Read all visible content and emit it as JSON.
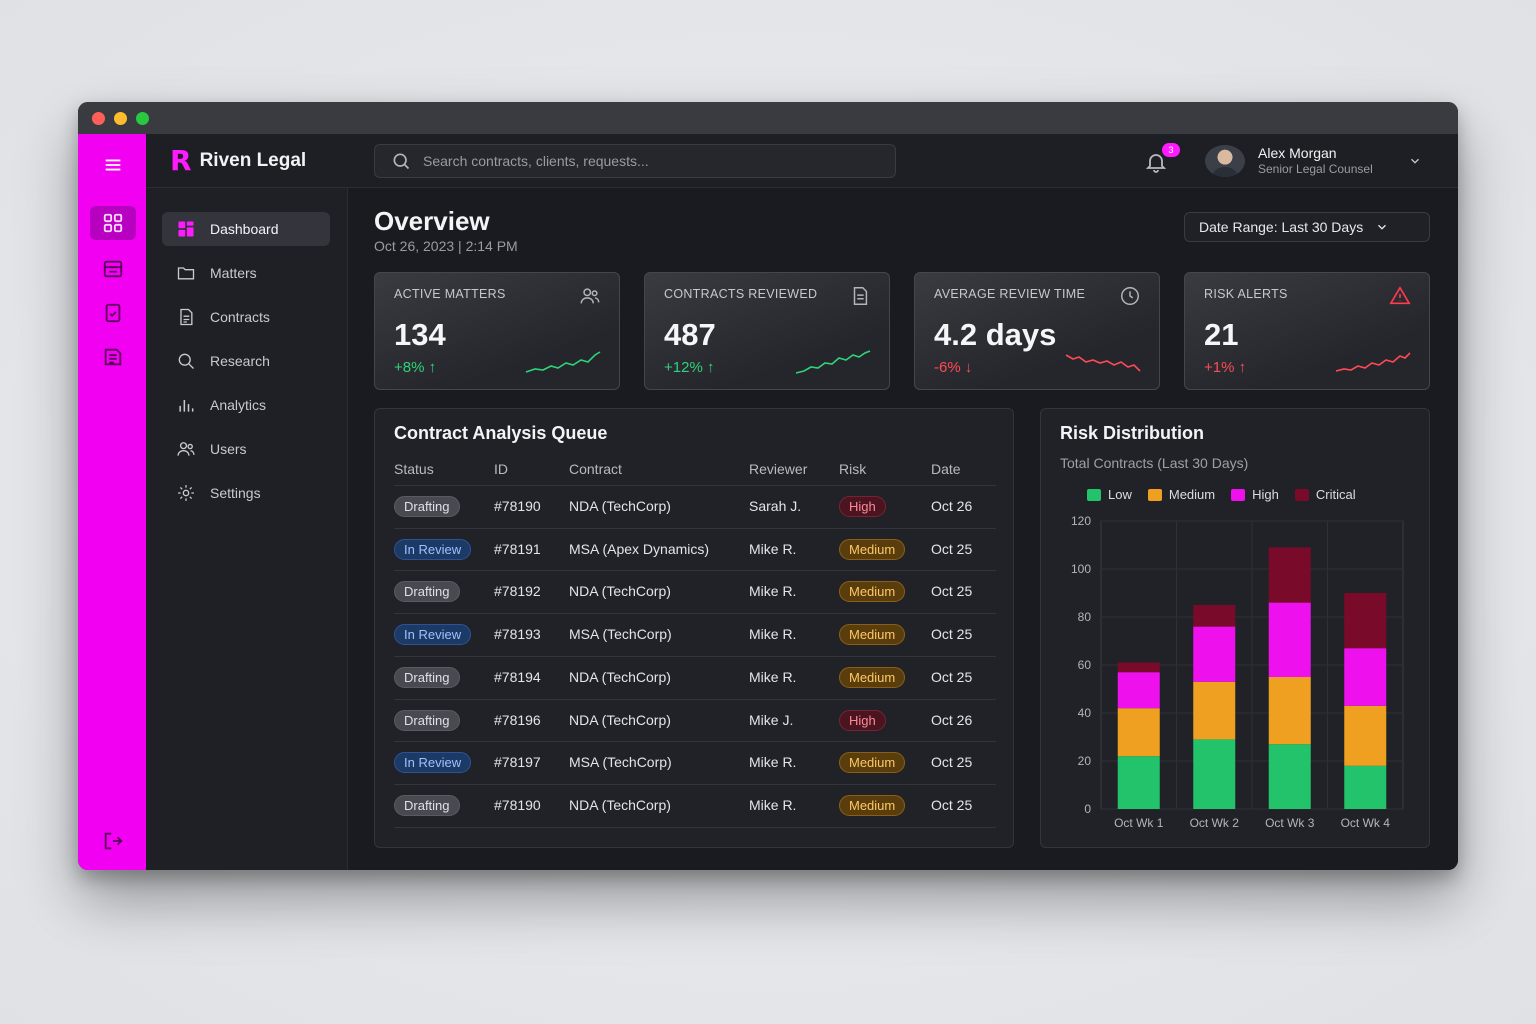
{
  "app": {
    "name": "Riven Legal",
    "logo_mark": "R"
  },
  "search": {
    "placeholder": "Search contracts, clients, requests..."
  },
  "notifications": {
    "count": "3"
  },
  "user": {
    "name": "Alex Morgan",
    "role": "Senior Legal Counsel"
  },
  "sidebar": {
    "items": [
      {
        "label": "Dashboard",
        "icon": "dashboard-icon",
        "active": true
      },
      {
        "label": "Matters",
        "icon": "folder-icon"
      },
      {
        "label": "Contracts",
        "icon": "document-icon"
      },
      {
        "label": "Research",
        "icon": "search-icon"
      },
      {
        "label": "Analytics",
        "icon": "bar-chart-icon"
      },
      {
        "label": "Users",
        "icon": "users-icon"
      },
      {
        "label": "Settings",
        "icon": "gear-icon"
      }
    ]
  },
  "page": {
    "title": "Overview",
    "datetime": "Oct 26, 2023 | 2:14 PM",
    "date_range": "Date Range: Last 30 Days"
  },
  "kpis": [
    {
      "label": "ACTIVE MATTERS",
      "value": "134",
      "change": "+8% ↑",
      "trend": "up",
      "icon": "users-icon"
    },
    {
      "label": "CONTRACTS REVIEWED",
      "value": "487",
      "change": "+12% ↑",
      "trend": "up",
      "icon": "document-icon"
    },
    {
      "label": "AVERAGE REVIEW TIME",
      "value": "4.2 days",
      "change": "-6% ↓",
      "trend": "down",
      "icon": "clock-icon"
    },
    {
      "label": "RISK ALERTS",
      "value": "21",
      "change": "+1% ↑",
      "trend": "alert",
      "icon": "warning-icon"
    }
  ],
  "queue": {
    "title": "Contract Analysis Queue",
    "columns": [
      "Status",
      "ID",
      "Contract",
      "Reviewer",
      "Risk",
      "Date"
    ],
    "rows": [
      {
        "status": "Drafting",
        "id": "#78190",
        "contract": "NDA (TechCorp)",
        "reviewer": "Sarah J.",
        "risk": "High",
        "date": "Oct 26"
      },
      {
        "status": "In Review",
        "id": "#78191",
        "contract": "MSA (Apex Dynamics)",
        "reviewer": "Mike R.",
        "risk": "Medium",
        "date": "Oct 25"
      },
      {
        "status": "Drafting",
        "id": "#78192",
        "contract": "NDA (TechCorp)",
        "reviewer": "Mike R.",
        "risk": "Medium",
        "date": "Oct 25"
      },
      {
        "status": "In Review",
        "id": "#78193",
        "contract": "MSA (TechCorp)",
        "reviewer": "Mike R.",
        "risk": "Medium",
        "date": "Oct 25"
      },
      {
        "status": "Drafting",
        "id": "#78194",
        "contract": "NDA (TechCorp)",
        "reviewer": "Mike R.",
        "risk": "Medium",
        "date": "Oct 25"
      },
      {
        "status": "Drafting",
        "id": "#78196",
        "contract": "NDA (TechCorp)",
        "reviewer": "Mike J.",
        "risk": "High",
        "date": "Oct 26"
      },
      {
        "status": "In Review",
        "id": "#78197",
        "contract": "MSA (TechCorp)",
        "reviewer": "Mike R.",
        "risk": "Medium",
        "date": "Oct 25"
      },
      {
        "status": "Drafting",
        "id": "#78190",
        "contract": "NDA (TechCorp)",
        "reviewer": "Mike R.",
        "risk": "Medium",
        "date": "Oct 25"
      }
    ]
  },
  "risk_panel": {
    "title": "Risk Distribution",
    "subtitle": "Total Contracts (Last 30 Days)"
  },
  "chart_data": {
    "type": "bar",
    "stacked": true,
    "categories": [
      "Oct Wk 1",
      "Oct Wk 2",
      "Oct Wk 3",
      "Oct Wk 4"
    ],
    "series": [
      {
        "name": "Low",
        "color": "#22c36a",
        "values": [
          22,
          29,
          27,
          18
        ]
      },
      {
        "name": "Medium",
        "color": "#f0a020",
        "values": [
          20,
          24,
          28,
          25
        ]
      },
      {
        "name": "High",
        "color": "#ee11ee",
        "values": [
          15,
          23,
          31,
          24
        ]
      },
      {
        "name": "Critical",
        "color": "#7a0a2a",
        "values": [
          4,
          9,
          23,
          23
        ]
      }
    ],
    "ylim": [
      0,
      120
    ],
    "yticks": [
      0,
      20,
      40,
      60,
      80,
      100,
      120
    ],
    "grid": true,
    "legend": "top"
  },
  "colors": {
    "accent": "#f200f2",
    "up": "#2fd37a",
    "down": "#ff4a55"
  }
}
